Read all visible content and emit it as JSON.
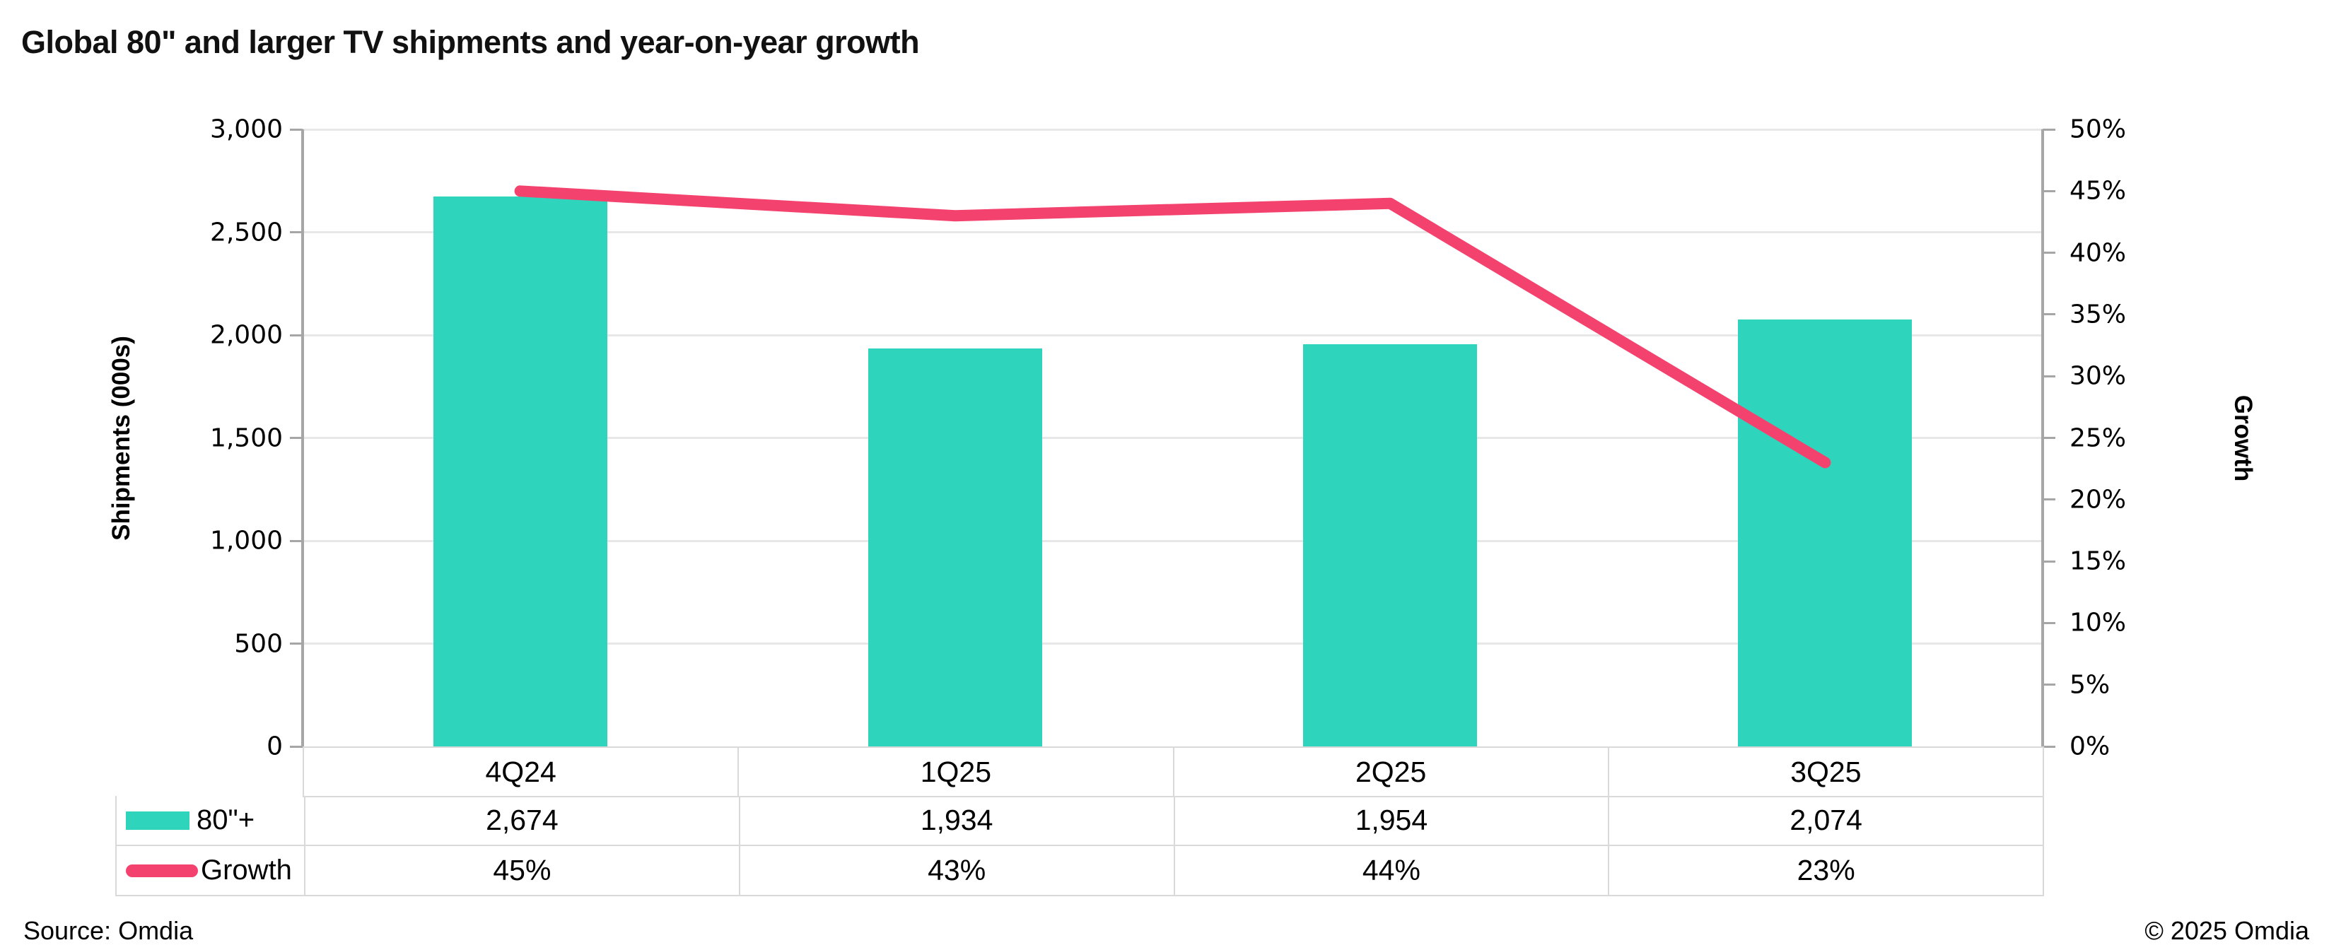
{
  "title": "Global 80\" and larger TV shipments and year-on-year growth",
  "footer": {
    "source": "Source: Omdia",
    "copyright": "© 2025 Omdia"
  },
  "colors": {
    "bar": "#2fd4bd",
    "line": "#f4426e",
    "grid": "#e7e7e7",
    "axis_line": "#a6a6a6",
    "table_border": "#d9d9d9",
    "text": "#000000"
  },
  "chart_data": {
    "type": "bar",
    "subtype": "combo-bar-line",
    "title": "Global 80\" and larger TV shipments and year-on-year growth",
    "categories": [
      "4Q24",
      "1Q25",
      "2Q25",
      "3Q25"
    ],
    "series": [
      {
        "name": "80\"+",
        "type": "bar",
        "axis": "left",
        "color": "#2fd4bd",
        "values": [
          2674,
          1934,
          1954,
          2074
        ],
        "display_values": [
          "2,674",
          "1,934",
          "1,954",
          "2,074"
        ]
      },
      {
        "name": "Growth",
        "type": "line",
        "axis": "right",
        "color": "#f4426e",
        "values": [
          45,
          43,
          44,
          23
        ],
        "display_values": [
          "45%",
          "43%",
          "44%",
          "23%"
        ]
      }
    ],
    "left_axis": {
      "title": "Shipments (000s)",
      "min": 0,
      "max": 3000,
      "step": 500,
      "tick_labels": [
        "0",
        "500",
        "1,000",
        "1,500",
        "2,000",
        "2,500",
        "3,000"
      ]
    },
    "right_axis": {
      "title": "Growth",
      "min": 0,
      "max": 50,
      "step": 5,
      "tick_labels": [
        "0%",
        "5%",
        "10%",
        "15%",
        "20%",
        "25%",
        "30%",
        "35%",
        "40%",
        "45%",
        "50%"
      ]
    },
    "grid": true,
    "legend_position": "table-left-column"
  }
}
